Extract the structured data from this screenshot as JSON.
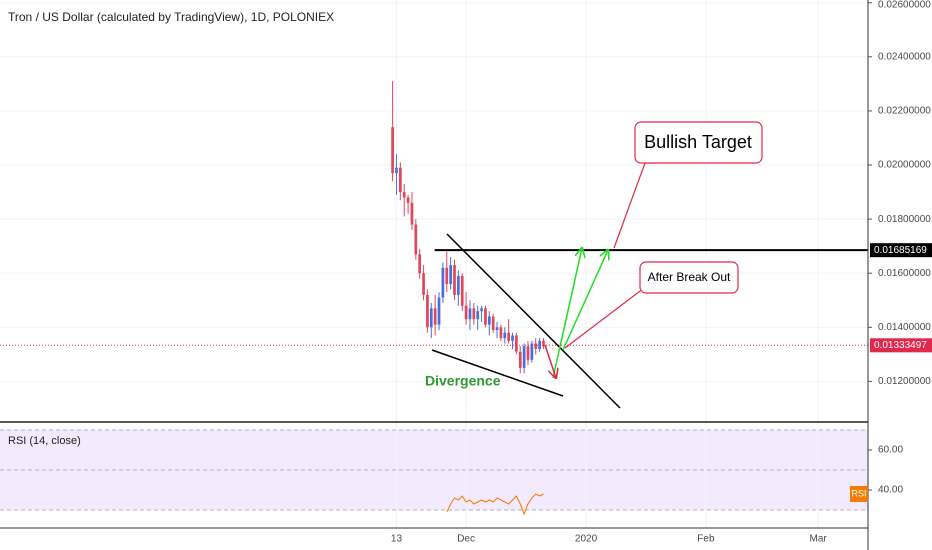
{
  "chart_data": [
    {
      "type": "candlestick",
      "title": "Tron / US Dollar (calculated by TradingView), 1D, POLONIEX",
      "open": [
        0.0214,
        0.0197,
        0.0199,
        0.019,
        0.0188,
        0.0186,
        0.0178,
        0.0167,
        0.016,
        0.0152,
        0.014,
        0.0147,
        0.0141,
        0.0151,
        0.0162,
        0.0156,
        0.0163,
        0.0152,
        0.0159,
        0.0148,
        0.0143,
        0.0147,
        0.0143,
        0.0146,
        0.0147,
        0.0141,
        0.0144,
        0.0139,
        0.014,
        0.0136,
        0.0138,
        0.0135,
        0.0137,
        0.0131,
        0.0125,
        0.0133,
        0.0128,
        0.0134,
        0.0132,
        0.0135
      ],
      "high": [
        0.0231,
        0.0204,
        0.0201,
        0.0193,
        0.0189,
        0.019,
        0.018,
        0.0169,
        0.0163,
        0.0154,
        0.0149,
        0.0152,
        0.0153,
        0.0164,
        0.0168,
        0.0166,
        0.0165,
        0.0161,
        0.016,
        0.0153,
        0.015,
        0.0149,
        0.0148,
        0.0148,
        0.0148,
        0.0146,
        0.0145,
        0.0142,
        0.0141,
        0.014,
        0.0143,
        0.0138,
        0.0138,
        0.0133,
        0.0134,
        0.0135,
        0.0135,
        0.0136,
        0.0136,
        0.0136
      ],
      "low": [
        0.0194,
        0.0189,
        0.0187,
        0.0181,
        0.0182,
        0.0176,
        0.0165,
        0.0158,
        0.015,
        0.0138,
        0.0136,
        0.0137,
        0.0139,
        0.0149,
        0.0153,
        0.0154,
        0.015,
        0.0148,
        0.0146,
        0.0141,
        0.0139,
        0.0141,
        0.0139,
        0.0142,
        0.014,
        0.0137,
        0.0138,
        0.0136,
        0.0135,
        0.0134,
        0.0134,
        0.0132,
        0.013,
        0.0123,
        0.0123,
        0.0126,
        0.0127,
        0.013,
        0.0131,
        0.0132
      ],
      "close": [
        0.0197,
        0.0199,
        0.019,
        0.0188,
        0.0186,
        0.0178,
        0.0167,
        0.016,
        0.0152,
        0.014,
        0.0147,
        0.0141,
        0.0151,
        0.0162,
        0.0156,
        0.0163,
        0.0152,
        0.0159,
        0.0148,
        0.0143,
        0.0147,
        0.0143,
        0.0146,
        0.0147,
        0.0141,
        0.0144,
        0.0139,
        0.014,
        0.0136,
        0.0138,
        0.0135,
        0.0137,
        0.0131,
        0.0125,
        0.0133,
        0.0128,
        0.0134,
        0.0132,
        0.0135,
        0.0133
      ],
      "up_color": "#4a6ee0",
      "down_color": "#e0485a",
      "xlim": [
        -101.5,
        122.9
      ],
      "xticks": [
        {
          "value": 1,
          "label": "13"
        },
        {
          "value": 19,
          "label": "Dec"
        },
        {
          "value": 50,
          "label": "2020"
        },
        {
          "value": 81,
          "label": "Feb"
        },
        {
          "value": 110,
          "label": "Mar"
        }
      ],
      "ylim": [
        0.0105,
        0.0261
      ],
      "yticks": [
        {
          "value": 0.012,
          "label": "0.01200000"
        },
        {
          "value": 0.014,
          "label": "0.01400000"
        },
        {
          "value": 0.016,
          "label": "0.01600000"
        },
        {
          "value": 0.018,
          "label": "0.01800000"
        },
        {
          "value": 0.02,
          "label": "0.02000000"
        },
        {
          "value": 0.022,
          "label": "0.02200000"
        },
        {
          "value": 0.024,
          "label": "0.02400000"
        },
        {
          "value": 0.026,
          "label": "0.02600000"
        }
      ],
      "price_lines": [
        {
          "value": 0.01685169,
          "color": "#000000"
        },
        {
          "value": 0.01333497,
          "color": "#e0284a"
        }
      ],
      "annotations": {
        "target": "Bullish Target",
        "breakout": "After Break Out",
        "divergence": "Divergence"
      },
      "grid": true
    },
    {
      "type": "line",
      "title": "RSI (14, close)",
      "series": [
        {
          "name": "RSI",
          "color": "#f57c00",
          "values": [
            null,
            null,
            null,
            null,
            null,
            null,
            null,
            null,
            null,
            null,
            null,
            null,
            null,
            null,
            29,
            33,
            36,
            35,
            37,
            34,
            35,
            33,
            34,
            35,
            34,
            35,
            34,
            36,
            35,
            34,
            33,
            35,
            37,
            33,
            28,
            33,
            36,
            38,
            37,
            38
          ]
        }
      ],
      "ylim": [
        21,
        74
      ],
      "yticks": [
        {
          "value": 40,
          "label": "40.00"
        },
        {
          "value": 60,
          "label": "60.00"
        }
      ],
      "levels": [
        30,
        50,
        70
      ],
      "band_color": "#f3ebfd"
    }
  ]
}
